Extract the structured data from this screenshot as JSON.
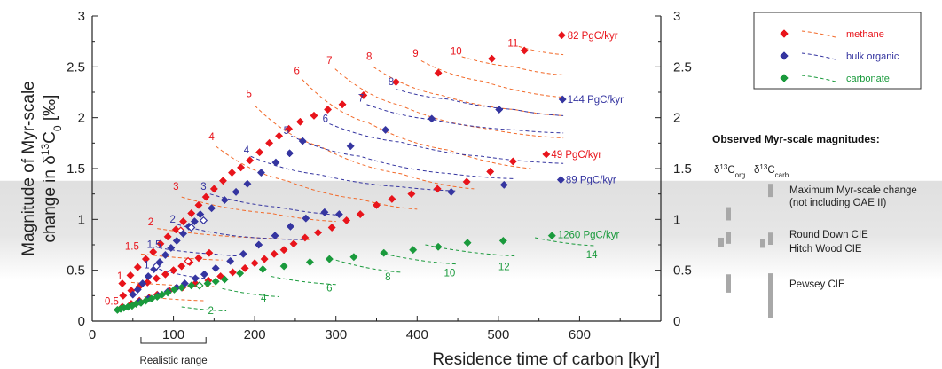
{
  "colors": {
    "methane": "#e8141b",
    "bulk_organic": "#3535a0",
    "carbonate": "#1a9a3c",
    "methane_line": "#f26a2a",
    "observed_bar": "#a8a8a8",
    "band": "#dedede"
  },
  "chart_data": {
    "type": "scatter",
    "xlabel": "Residence time of carbon [kyr]",
    "ylabel_line1": "Magnitude of Myr-scale",
    "ylabel_line2_prefix": "change in δ",
    "ylabel_sup": "13",
    "ylabel_line2_suffix": "C",
    "ylabel_sub": "0",
    "ylabel_unit": " [‰]",
    "xlim": [
      0,
      700
    ],
    "ylim": [
      0,
      3
    ],
    "xticks": [
      0,
      100,
      200,
      300,
      400,
      500,
      600
    ],
    "yticks": [
      0,
      0.5,
      1,
      1.5,
      2,
      2.5,
      3
    ],
    "ytick_labels": [
      "0",
      "0.5",
      "1",
      "1.5",
      "2",
      "2.5",
      "3"
    ],
    "shaded_band": {
      "y_range": [
        0.4,
        1.38
      ]
    },
    "realistic_range": {
      "label": "Realistic range",
      "x_range": [
        60,
        140
      ]
    },
    "series": [
      {
        "name": "methane",
        "points": [
          [
            37,
            0.37
          ],
          [
            47,
            0.45
          ],
          [
            56,
            0.53
          ],
          [
            66,
            0.61
          ],
          [
            75,
            0.68
          ],
          [
            84,
            0.76
          ],
          [
            93,
            0.83
          ],
          [
            103,
            0.9
          ],
          [
            112,
            0.98
          ],
          [
            122,
            1.06
          ],
          [
            131,
            1.14
          ],
          [
            140,
            1.22
          ],
          [
            150,
            1.3
          ],
          [
            161,
            1.38
          ],
          [
            172,
            1.46
          ],
          [
            183,
            1.51
          ],
          [
            194,
            1.58
          ],
          [
            206,
            1.66
          ],
          [
            218,
            1.75
          ],
          [
            230,
            1.82
          ],
          [
            242,
            1.89
          ],
          [
            256,
            1.96
          ],
          [
            273,
            2.02
          ],
          [
            290,
            2.08
          ],
          [
            308,
            2.13
          ],
          [
            38,
            0.25
          ],
          [
            48,
            0.3
          ],
          [
            58,
            0.34
          ],
          [
            68,
            0.38
          ],
          [
            79,
            0.42
          ],
          [
            90,
            0.46
          ],
          [
            100,
            0.5
          ],
          [
            110,
            0.54
          ],
          [
            120,
            0.58
          ],
          [
            131,
            0.62
          ],
          [
            144,
            0.67
          ],
          [
            37,
            0.14
          ],
          [
            48,
            0.17
          ],
          [
            58,
            0.2
          ],
          [
            70,
            0.23
          ],
          [
            80,
            0.26
          ],
          [
            95,
            0.3
          ],
          [
            111,
            0.33
          ],
          [
            127,
            0.37
          ],
          [
            143,
            0.4
          ],
          [
            158,
            0.44
          ],
          [
            173,
            0.48
          ],
          [
            188,
            0.52
          ],
          [
            200,
            0.57
          ],
          [
            212,
            0.61
          ],
          [
            224,
            0.66
          ],
          [
            236,
            0.7
          ],
          [
            248,
            0.76
          ],
          [
            262,
            0.82
          ],
          [
            278,
            0.87
          ],
          [
            295,
            0.92
          ],
          [
            313,
            0.99
          ],
          [
            330,
            1.05
          ],
          [
            350,
            1.14
          ],
          [
            369,
            1.2
          ],
          [
            393,
            1.25
          ],
          [
            425,
            1.3
          ],
          [
            461,
            1.37
          ],
          [
            490,
            1.47
          ],
          [
            518,
            1.57
          ],
          [
            559,
            1.64
          ],
          [
            334,
            2.22
          ],
          [
            374,
            2.35
          ],
          [
            426,
            2.44
          ],
          [
            492,
            2.58
          ],
          [
            532,
            2.66
          ],
          [
            578,
            2.81
          ]
        ],
        "open_points": [
          [
            109,
            0.89
          ],
          [
            118,
            0.59
          ]
        ]
      },
      {
        "name": "bulk organic",
        "points": [
          [
            50,
            0.26
          ],
          [
            56,
            0.31
          ],
          [
            62,
            0.37
          ],
          [
            69,
            0.44
          ],
          [
            76,
            0.51
          ],
          [
            83,
            0.58
          ],
          [
            90,
            0.65
          ],
          [
            97,
            0.72
          ],
          [
            104,
            0.79
          ],
          [
            112,
            0.86
          ],
          [
            119,
            0.93
          ],
          [
            126,
            0.98
          ],
          [
            133,
            1.05
          ],
          [
            147,
            1.11
          ],
          [
            163,
            1.19
          ],
          [
            177,
            1.27
          ],
          [
            191,
            1.35
          ],
          [
            208,
            1.46
          ],
          [
            226,
            1.56
          ],
          [
            243,
            1.65
          ],
          [
            259,
            1.77
          ],
          [
            58,
            0.19
          ],
          [
            69,
            0.22
          ],
          [
            81,
            0.25
          ],
          [
            93,
            0.29
          ],
          [
            104,
            0.33
          ],
          [
            114,
            0.37
          ],
          [
            127,
            0.42
          ],
          [
            138,
            0.46
          ],
          [
            152,
            0.52
          ],
          [
            170,
            0.59
          ],
          [
            186,
            0.66
          ],
          [
            205,
            0.75
          ],
          [
            225,
            0.84
          ],
          [
            244,
            0.93
          ],
          [
            263,
            1.01
          ],
          [
            286,
            1.07
          ],
          [
            304,
            1.05
          ],
          [
            318,
            1.72
          ],
          [
            361,
            1.88
          ],
          [
            418,
            1.99
          ],
          [
            442,
            1.27
          ],
          [
            501,
            2.08
          ],
          [
            507,
            1.34
          ],
          [
            577,
            1.39
          ],
          [
            579,
            2.18
          ]
        ],
        "open_points": [
          [
            79,
            0.54
          ],
          [
            122,
            0.92
          ],
          [
            137,
            0.99
          ]
        ]
      },
      {
        "name": "carbonate",
        "points": [
          [
            31,
            0.11
          ],
          [
            35,
            0.12
          ],
          [
            39,
            0.13
          ],
          [
            44,
            0.14
          ],
          [
            49,
            0.15
          ],
          [
            54,
            0.17
          ],
          [
            60,
            0.18
          ],
          [
            66,
            0.2
          ],
          [
            73,
            0.22
          ],
          [
            80,
            0.24
          ],
          [
            86,
            0.26
          ],
          [
            93,
            0.28
          ],
          [
            101,
            0.31
          ],
          [
            110,
            0.33
          ],
          [
            122,
            0.35
          ],
          [
            142,
            0.37
          ],
          [
            152,
            0.39
          ],
          [
            163,
            0.41
          ],
          [
            182,
            0.47
          ],
          [
            210,
            0.51
          ],
          [
            236,
            0.54
          ],
          [
            268,
            0.58
          ],
          [
            292,
            0.61
          ],
          [
            322,
            0.63
          ],
          [
            359,
            0.67
          ],
          [
            395,
            0.7
          ],
          [
            426,
            0.73
          ],
          [
            462,
            0.77
          ],
          [
            506,
            0.79
          ],
          [
            566,
            0.84
          ]
        ],
        "open_points": [
          [
            132,
            0.35
          ]
        ]
      }
    ],
    "rate_labels": [
      {
        "text": "82 PgC/kyr",
        "x": 585,
        "y": 2.81,
        "color": "methane"
      },
      {
        "text": "144 PgC/kyr",
        "x": 585,
        "y": 2.18,
        "color": "bulk_organic"
      },
      {
        "text": "49 PgC/kyr",
        "x": 565,
        "y": 1.64,
        "color": "methane"
      },
      {
        "text": "89 PgC/kyr",
        "x": 583,
        "y": 1.39,
        "color": "bulk_organic"
      },
      {
        "text": "1260 PgC/kyr",
        "x": 573,
        "y": 0.85,
        "color": "carbonate"
      }
    ],
    "number_labels": [
      {
        "text": "11",
        "x": 518,
        "y": 2.7,
        "color": "methane"
      },
      {
        "text": "10",
        "x": 448,
        "y": 2.62,
        "color": "methane"
      },
      {
        "text": "9",
        "x": 398,
        "y": 2.6,
        "color": "methane"
      },
      {
        "text": "8",
        "x": 341,
        "y": 2.57,
        "color": "methane"
      },
      {
        "text": "7",
        "x": 292,
        "y": 2.53,
        "color": "methane"
      },
      {
        "text": "6",
        "x": 252,
        "y": 2.43,
        "color": "methane"
      },
      {
        "text": "5",
        "x": 193,
        "y": 2.2,
        "color": "methane"
      },
      {
        "text": "4",
        "x": 147,
        "y": 1.78,
        "color": "methane"
      },
      {
        "text": "3",
        "x": 103,
        "y": 1.29,
        "color": "methane"
      },
      {
        "text": "2",
        "x": 72,
        "y": 0.94,
        "color": "methane"
      },
      {
        "text": "1.5",
        "x": 49,
        "y": 0.7,
        "color": "methane"
      },
      {
        "text": "1",
        "x": 34,
        "y": 0.41,
        "color": "methane"
      },
      {
        "text": "0.5",
        "x": 24,
        "y": 0.16,
        "color": "methane"
      },
      {
        "text": "8",
        "x": 368,
        "y": 2.32,
        "color": "bulk_organic"
      },
      {
        "text": "7",
        "x": 331,
        "y": 2.16,
        "color": "bulk_organic"
      },
      {
        "text": "6",
        "x": 287,
        "y": 1.96,
        "color": "bulk_organic"
      },
      {
        "text": "5",
        "x": 239,
        "y": 1.84,
        "color": "bulk_organic"
      },
      {
        "text": "4",
        "x": 190,
        "y": 1.65,
        "color": "bulk_organic"
      },
      {
        "text": "3",
        "x": 137,
        "y": 1.29,
        "color": "bulk_organic"
      },
      {
        "text": "2",
        "x": 99,
        "y": 0.97,
        "color": "bulk_organic"
      },
      {
        "text": "1.5",
        "x": 76,
        "y": 0.72,
        "color": "bulk_organic"
      },
      {
        "text": "1",
        "x": 67,
        "y": 0.52,
        "color": "bulk_organic"
      },
      {
        "text": "2",
        "x": 146,
        "y": 0.07,
        "color": "carbonate"
      },
      {
        "text": "4",
        "x": 211,
        "y": 0.19,
        "color": "carbonate"
      },
      {
        "text": "6",
        "x": 292,
        "y": 0.29,
        "color": "carbonate"
      },
      {
        "text": "8",
        "x": 364,
        "y": 0.4,
        "color": "carbonate"
      },
      {
        "text": "10",
        "x": 440,
        "y": 0.44,
        "color": "carbonate"
      },
      {
        "text": "12",
        "x": 507,
        "y": 0.5,
        "color": "carbonate"
      },
      {
        "text": "14",
        "x": 615,
        "y": 0.62,
        "color": "carbonate"
      }
    ]
  },
  "legend": {
    "items": [
      {
        "label": "methane",
        "color": "methane"
      },
      {
        "label": "bulk organic",
        "color": "bulk_organic"
      },
      {
        "label": "carbonate",
        "color": "carbonate"
      }
    ]
  },
  "observed": {
    "title": "Observed Myr-scale magnitudes:",
    "col1_prefix": "δ",
    "col1_sup": "13",
    "col1_base": "C",
    "col1_sub": "org",
    "col2_prefix": "δ",
    "col2_sup": "13",
    "col2_base": "C",
    "col2_sub": "carb",
    "entries": [
      {
        "label_line1": "Maximum Myr-scale change",
        "label_line2": "(not including OAE II)",
        "org": [
          0.99,
          1.12
        ],
        "carb": [
          1.22,
          1.35
        ]
      },
      {
        "label_line1": "Round Down CIE",
        "label_line2": "",
        "org": [
          0.76,
          0.88
        ],
        "carb": [
          0.75,
          0.87
        ]
      },
      {
        "label_line1": "Hitch Wood CIE",
        "label_line2": "",
        "org": [
          0.73,
          0.82
        ],
        "carb": [
          0.72,
          0.81
        ]
      },
      {
        "label_line1": "Pewsey CIE",
        "label_line2": "",
        "org": [
          0.28,
          0.46
        ],
        "carb": [
          0.03,
          0.47
        ]
      }
    ]
  }
}
